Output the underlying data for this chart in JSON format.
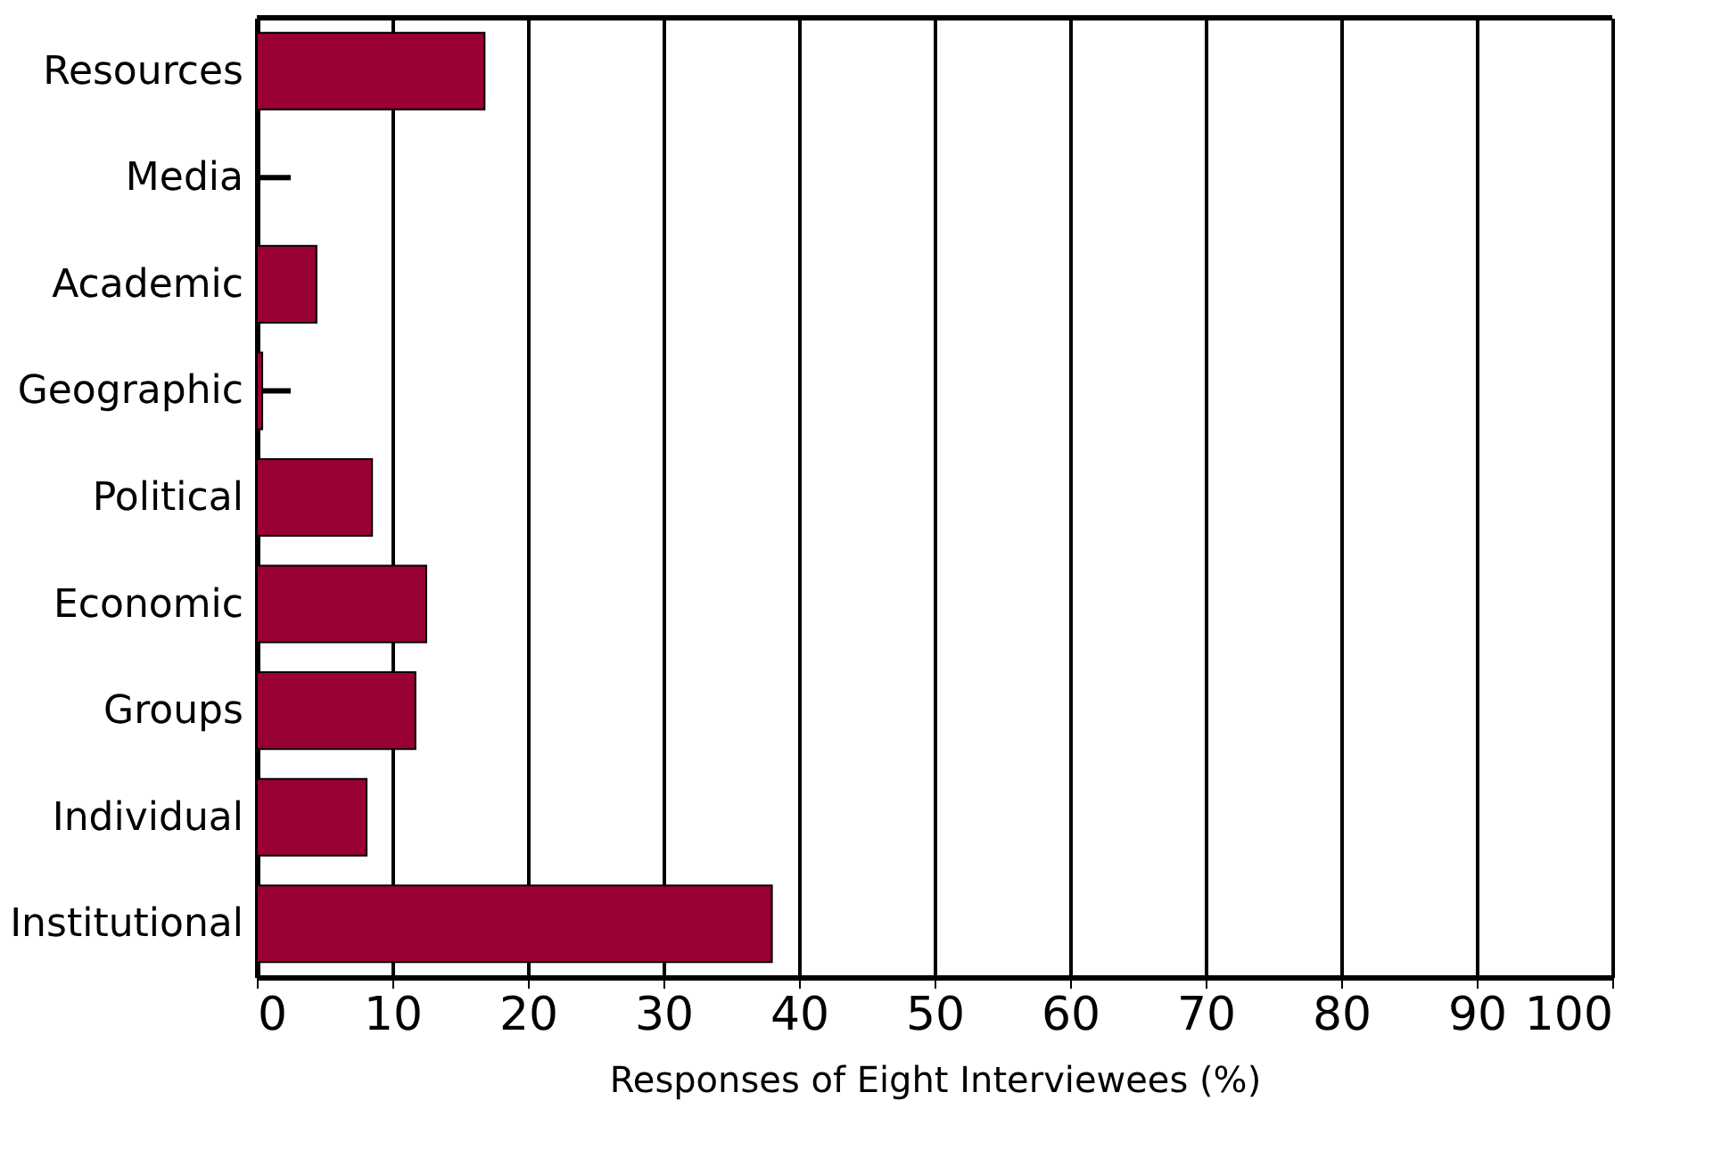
{
  "chart_data": {
    "type": "bar",
    "orientation": "horizontal",
    "xlabel": "Responses of Eight Interviewees (%)",
    "categories": [
      "Resources",
      "Media",
      "Academic",
      "Geographic",
      "Political",
      "Economic",
      "Groups",
      "Individual",
      "Institutional"
    ],
    "values": [
      16.8,
      0,
      4.4,
      0.4,
      8.5,
      12.5,
      11.7,
      8.1,
      38
    ],
    "errors": [
      null,
      [
        0,
        2.5
      ],
      null,
      [
        0.4,
        2.5
      ],
      null,
      null,
      null,
      null,
      null
    ],
    "color": "#990033",
    "xlim": [
      0,
      100
    ],
    "xticks": [
      0,
      10,
      20,
      30,
      40,
      50,
      60,
      70,
      80,
      90,
      100
    ],
    "grid": "x"
  }
}
